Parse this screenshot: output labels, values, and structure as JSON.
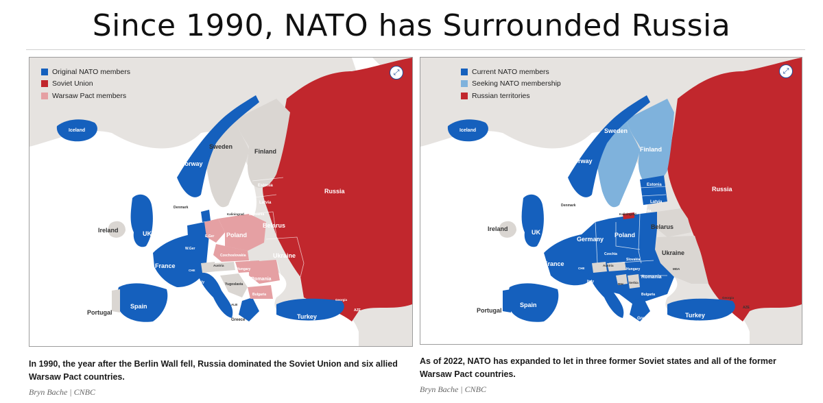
{
  "title": "Since 1990, NATO has Surrounded Russia",
  "colors": {
    "nato": "#1560bd",
    "soviet": "#c1272d",
    "warsaw": "#e5a0a3",
    "seeking": "#7fb2dc",
    "neutral": "#dad6d2",
    "sea": "#ffffff",
    "background_land": "#e6e3e0"
  },
  "left_map": {
    "legend": [
      {
        "label": "Original NATO members",
        "color": "#1560bd"
      },
      {
        "label": "Soviet Union",
        "color": "#c1272d"
      },
      {
        "label": "Warsaw Pact members",
        "color": "#e5a0a3"
      }
    ],
    "labels": {
      "iceland": "Iceland",
      "sweden": "Sweden",
      "finland": "Finland",
      "norway": "Norway",
      "russia": "Russia",
      "estonia": "Estonia",
      "latvia": "Latvia",
      "denmark": "Denmark",
      "kaliningrad": "Kaliningrad",
      "lithuania": "Lithuania",
      "ireland": "Ireland",
      "uk": "UK",
      "belarus": "Belarus",
      "poland": "Poland",
      "egermany": "E.Ger",
      "wgermany": "W.Ger",
      "czechoslovakia": "Czechoslovakia",
      "ukraine": "Ukraine",
      "austria": "Austria",
      "hungary": "Hungary",
      "france": "France",
      "switzerland": "CHE",
      "romania": "Romania",
      "italy": "Italy",
      "yugoslavia": "Yugoslavia",
      "bulgaria": "Bulgaria",
      "spain": "Spain",
      "portugal": "Portugal",
      "albania": "ALB",
      "greece": "Greece",
      "turkey": "Turkey",
      "georgia": "Georgia",
      "azerbaijan": "AZE"
    },
    "caption": "In 1990, the year after the Berlin Wall fell, Russia dominated the Soviet Union and six allied Warsaw Pact countries.",
    "credit": "Bryn Bache | CNBC"
  },
  "right_map": {
    "legend": [
      {
        "label": "Current NATO members",
        "color": "#1560bd"
      },
      {
        "label": "Seeking NATO membership",
        "color": "#7fb2dc"
      },
      {
        "label": "Russian territories",
        "color": "#c1272d"
      }
    ],
    "labels": {
      "iceland": "Iceland",
      "sweden": "Sweden",
      "finland": "Finland",
      "norway": "Norway",
      "russia": "Russia",
      "estonia": "Estonia",
      "latvia": "Latvia",
      "denmark": "Denmark",
      "kaliningrad": "Kaliningrad",
      "lithuania": "Lithuania",
      "ireland": "Ireland",
      "uk": "UK",
      "belarus": "Belarus",
      "poland": "Poland",
      "germany": "Germany",
      "czechia": "Czechia",
      "ukraine": "Ukraine",
      "austria": "Austria",
      "hungary": "Hungary",
      "france": "France",
      "switzerland": "CHE",
      "romania": "Romania",
      "italy": "Italy",
      "bosnia": "BIH",
      "serbia": "Serbia",
      "bulgaria": "Bulgaria",
      "spain": "Spain",
      "portugal": "Portugal",
      "greece": "Greece",
      "turkey": "Turkey",
      "georgia": "Georgia",
      "azerbaijan": "AZE",
      "moldova": "MDA",
      "slovakia": "Slovakia"
    },
    "caption": "As of 2022, NATO has expanded to let in three former Soviet states and all of the former Warsaw Pact countries.",
    "credit": "Bryn Bache | CNBC"
  }
}
